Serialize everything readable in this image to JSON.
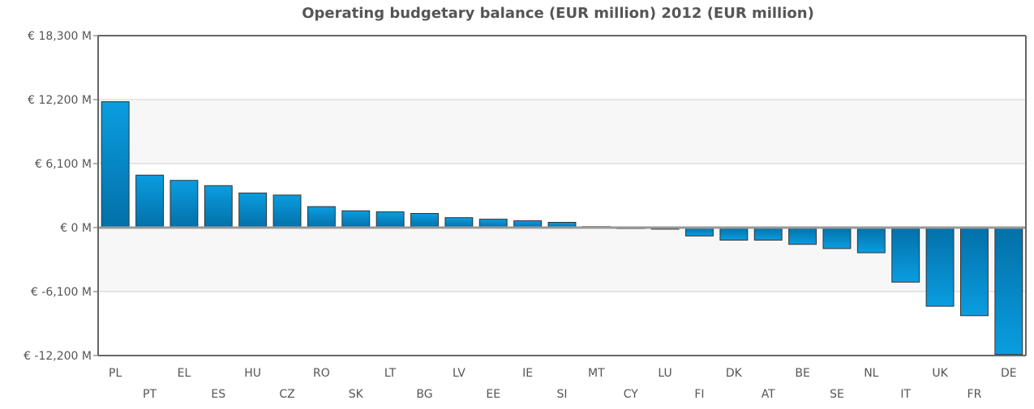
{
  "chart_data": {
    "type": "bar",
    "title": "Operating budgetary balance (EUR million) 2012 (EUR million)",
    "xlabel": "",
    "ylabel": "",
    "ylim": [
      -12200,
      18300
    ],
    "yticks": [
      18300,
      12200,
      6100,
      0,
      -6100,
      -12200
    ],
    "ytick_labels": [
      "€ 18,300 M",
      "€ 12,200 M",
      "€ 6,100 M",
      "€ 0 M",
      "€ -6,100 M",
      "€ -12,200 M"
    ],
    "categories": [
      "PL",
      "PT",
      "EL",
      "ES",
      "HU",
      "CZ",
      "RO",
      "SK",
      "LT",
      "BG",
      "LV",
      "EE",
      "IE",
      "SI",
      "MT",
      "CY",
      "LU",
      "FI",
      "DK",
      "AT",
      "BE",
      "SE",
      "NL",
      "IT",
      "UK",
      "FR",
      "DE"
    ],
    "values": [
      12000,
      5000,
      4500,
      4000,
      3300,
      3100,
      2000,
      1600,
      1500,
      1350,
      950,
      800,
      650,
      500,
      100,
      -100,
      -150,
      -800,
      -1200,
      -1200,
      -1600,
      -2000,
      -2400,
      -5200,
      -7500,
      -8400,
      -12100
    ],
    "grid": true,
    "legend": "none",
    "colors": {
      "bar_top": "#0a9de0",
      "bar_bottom": "#0370a8",
      "bar_stroke": "#333333",
      "band": "#f7f7f7",
      "grid": "#d0d0d0",
      "axis": "#666666",
      "zero_line": "#999999"
    }
  }
}
